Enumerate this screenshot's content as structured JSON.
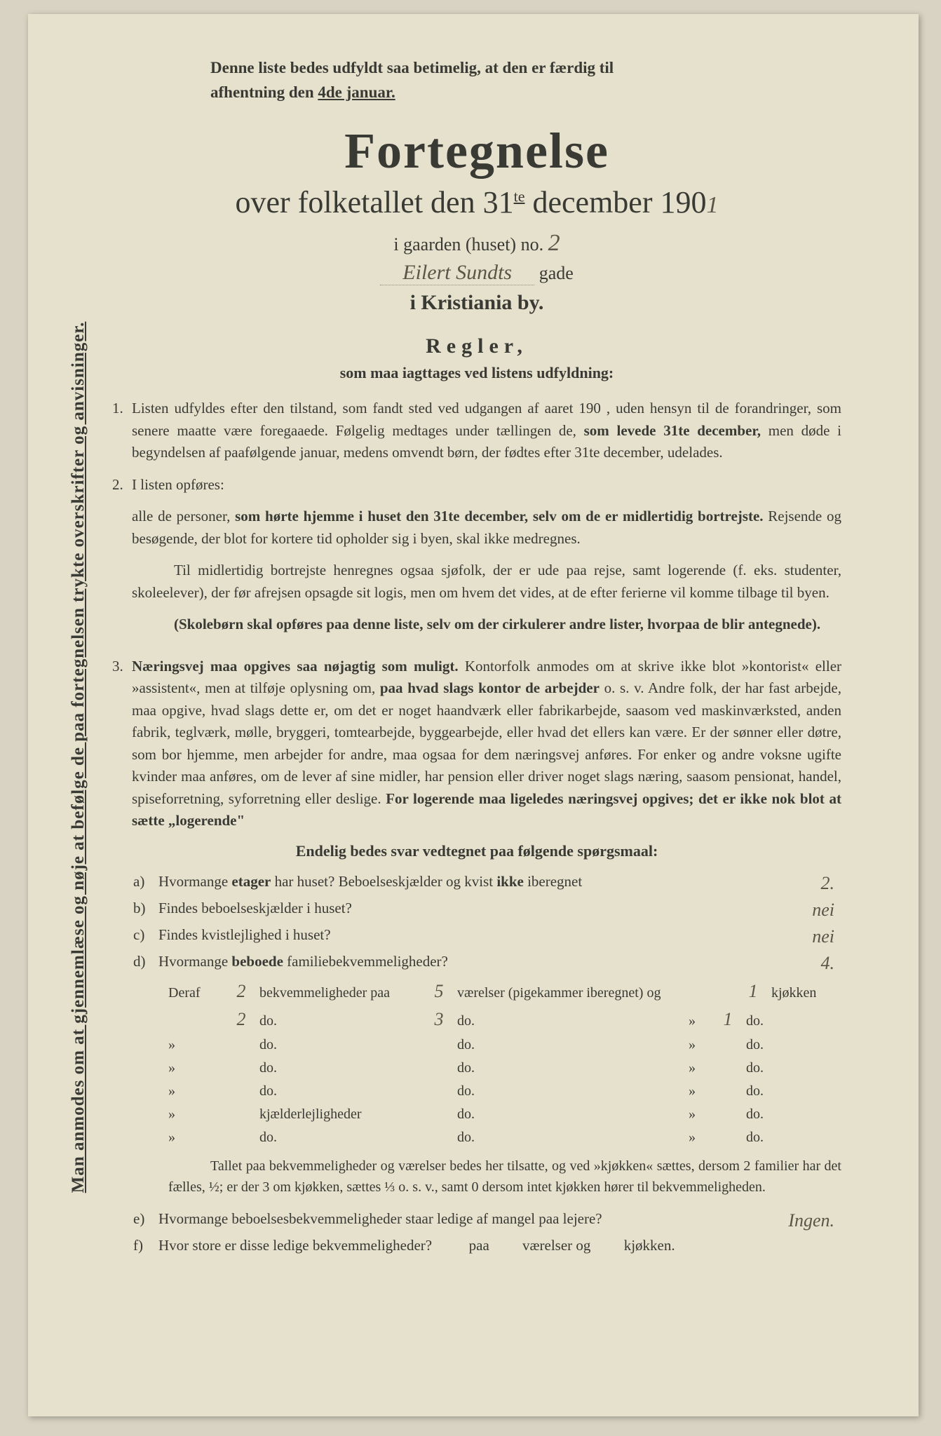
{
  "top_note": {
    "line1": "Denne liste bedes udfyldt saa betimelig, at den er færdig til",
    "line2_pre": "afhentning den ",
    "line2_underline": "4de januar."
  },
  "main_title": "Fortegnelse",
  "sub_title_pre": "over folketallet den 31",
  "sub_title_sup": "te",
  "sub_title_post": " december 190",
  "year_hand": "1",
  "gaarden_label": "i gaarden (huset) no. ",
  "house_no": "2",
  "street_name": "Eilert Sundts",
  "gade_label": "gade",
  "city": "i Kristiania by.",
  "regler_title": "Regler,",
  "regler_sub": "som maa iagttages ved listens udfyldning:",
  "rules": {
    "r1_num": "1.",
    "r1": "Listen udfyldes efter den tilstand, som fandt sted ved udgangen af aaret 190   , uden hensyn til de forandringer, som senere maatte være foregaaede.  Følgelig medtages under tællingen de, <b>som levede 31te december,</b> men døde i begyndelsen af paafølgende januar, medens omvendt børn, der fødtes efter 31te december, udelades.",
    "r2_num": "2.",
    "r2_intro": "I listen opføres:",
    "r2a": "alle de personer, <b>som hørte hjemme i huset den 31te december, selv om de er midlertidig bortrejste.</b>  Rejsende og besøgende, der blot for kortere tid opholder sig i byen, skal ikke medregnes.",
    "r2b": "Til midlertidig bortrejste henregnes ogsaa sjøfolk, der er ude paa rejse, samt logerende (f. eks. studenter, skoleelever), der før afrejsen opsagde sit logis, men om hvem det vides, at de efter ferierne vil komme tilbage til byen.",
    "r2c": "<b>(Skolebørn skal opføres paa denne liste, selv om der cirkulerer andre lister, hvorpaa de blir antegnede).</b>",
    "r3_num": "3.",
    "r3": "<b>Næringsvej maa opgives saa nøjagtig som muligt.</b>  Kontorfolk anmodes om at skrive ikke blot »kontorist« eller »assistent«, men at tilføje oplysning om, <b>paa hvad slags kontor de arbejder</b> o. s. v.  Andre folk, der har fast arbejde, maa opgive, hvad slags dette er, om det er noget haandværk eller fabrikarbejde, saasom ved maskinværksted, anden fabrik, teglværk, mølle, bryggeri, tomtearbejde, byggearbejde, eller hvad det ellers kan være.  Er der sønner eller døtre, som bor hjemme, men arbejder for andre, maa ogsaa for dem næringsvej anføres.  For enker og andre voksne ugifte kvinder maa anføres, om de lever af sine midler, har pension eller driver noget slags næring, saasom pensionat, handel, spiseforretning, syforretning eller deslige.  <b>For logerende maa ligeledes næringsvej opgives; det er ikke nok blot at sætte „logerende\"</b>"
  },
  "questions_title": "Endelig bedes svar vedtegnet paa følgende spørgsmaal:",
  "q_a": {
    "label": "a)",
    "text": "Hvormange <b>etager</b> har huset?  Beboelseskjælder og kvist <b>ikke</b> iberegnet",
    "answer": "2."
  },
  "q_b": {
    "label": "b)",
    "text": "Findes beboelseskjælder i huset?",
    "answer": "nei"
  },
  "q_c": {
    "label": "c)",
    "text": "Findes kvistlejlighed i huset?",
    "answer": "nei"
  },
  "q_d": {
    "label": "d)",
    "text": "Hvormange <b>beboede</b> familiebekvemmeligheder?",
    "answer": "4."
  },
  "deraf": {
    "rows": [
      {
        "a": "Deraf",
        "b": "2",
        "c": "bekvemmeligheder paa",
        "d": "5",
        "e": "værelser (pigekammer iberegnet) og",
        "g": "1",
        "h": "kjøkken"
      },
      {
        "a": "",
        "b": "2",
        "c": "do.",
        "d": "3",
        "e": "do.",
        "g": "1",
        "h": "do."
      },
      {
        "a": "»",
        "b": "",
        "c": "do.",
        "d": "",
        "e": "do.",
        "g": "",
        "h": "do."
      },
      {
        "a": "»",
        "b": "",
        "c": "do.",
        "d": "",
        "e": "do.",
        "g": "",
        "h": "do."
      },
      {
        "a": "»",
        "b": "",
        "c": "do.",
        "d": "",
        "e": "do.",
        "g": "",
        "h": "do."
      },
      {
        "a": "»",
        "b": "",
        "c": "kjælderlejligheder",
        "d": "",
        "e": "do.",
        "g": "",
        "h": "do."
      },
      {
        "a": "»",
        "b": "",
        "c": "do.",
        "d": "",
        "e": "do.",
        "g": "",
        "h": "do."
      }
    ]
  },
  "footnote": "Tallet paa bekvemmeligheder og værelser bedes her tilsatte, og ved »kjøkken« sættes, dersom 2 familier har det fælles, ½; er der 3 om kjøkken, sættes ⅓ o. s. v., samt 0 dersom intet kjøkken hører til bekvemmeligheden.",
  "q_e": {
    "label": "e)",
    "text": "Hvormange beboelsesbekvemmeligheder staar ledige af mangel paa lejere?",
    "answer": "Ingen."
  },
  "q_f": {
    "label": "f)",
    "text_pre": "Hvor store er disse ledige bekvemmeligheder?",
    "mid1": "paa",
    "mid2": "værelser og",
    "mid3": "kjøkken."
  },
  "side_text": "Man anmodes om at gjennemlæse og nøje at befølge de paa fortegnelsen trykte overskrifter og anvisninger.",
  "colors": {
    "bg": "#d8d3c2",
    "paper": "#e6e1cd",
    "text": "#3a3a35",
    "hand": "#5a5548"
  }
}
